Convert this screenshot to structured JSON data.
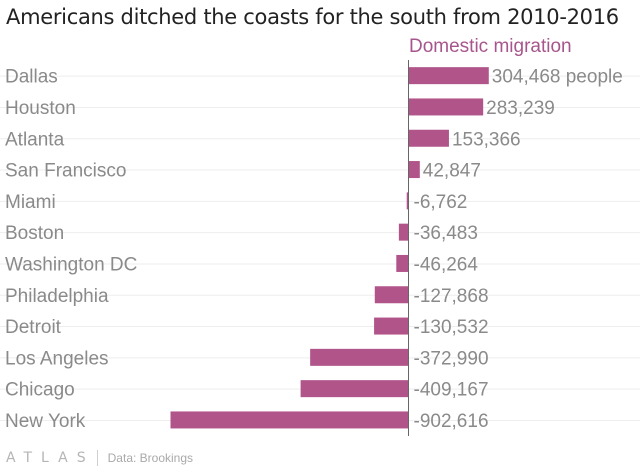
{
  "title": "Americans ditched the coasts for the south from 2010-2016",
  "series_header": "Domestic migration",
  "source": "Data: Brookings",
  "brand": "ATLAS",
  "colors": {
    "bar": "#b0548a",
    "header": "#a6568c",
    "text": "#8a8a8a",
    "grid": "#eeeeee",
    "axis": "#666666"
  },
  "chart_data": {
    "type": "bar",
    "orientation": "horizontal",
    "categories": [
      "Dallas",
      "Houston",
      "Atlanta",
      "San Francisco",
      "Miami",
      "Boston",
      "Washington DC",
      "Philadelphia",
      "Detroit",
      "Los Angeles",
      "Chicago",
      "New York"
    ],
    "values": [
      304468,
      283239,
      153366,
      42847,
      -6762,
      -36483,
      -46264,
      -127868,
      -130532,
      -372990,
      -409167,
      -902616
    ],
    "labels": [
      "304,468 people",
      "283,239",
      "153,366",
      "42,847",
      "-6,762",
      "-36,483",
      "-46,264",
      "-127,868",
      "-130,532",
      "-372,990",
      "-409,167",
      "-902,616"
    ],
    "series": [
      {
        "name": "Domestic migration"
      }
    ]
  }
}
